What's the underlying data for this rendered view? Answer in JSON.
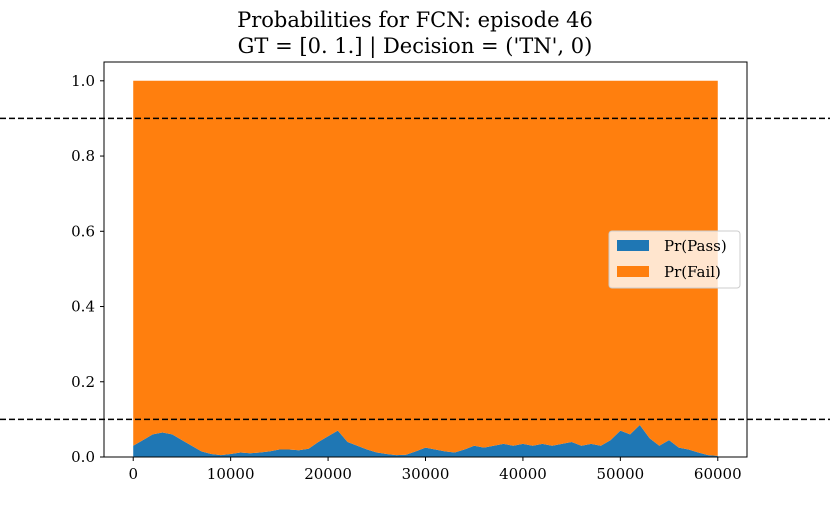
{
  "title_line1": "Probabilities for FCN: episode 46",
  "title_line2": "GT = [0. 1.] | Decision = ('TN', 0)",
  "chart_data": {
    "type": "area",
    "stacked": true,
    "title": "Probabilities for FCN: episode 46\nGT = [0. 1.] | Decision = ('TN', 0)",
    "xlabel": "",
    "ylabel": "",
    "xlim": [
      -3000,
      63000
    ],
    "ylim": [
      0,
      1.05
    ],
    "xticks": [
      0,
      10000,
      20000,
      30000,
      40000,
      50000,
      60000
    ],
    "yticks": [
      0.0,
      0.2,
      0.4,
      0.6,
      0.8,
      1.0
    ],
    "x": [
      0,
      1000,
      2000,
      3000,
      4000,
      5000,
      6000,
      7000,
      8000,
      9000,
      10000,
      11000,
      12000,
      13000,
      14000,
      15000,
      16000,
      17000,
      18000,
      19000,
      20000,
      21000,
      22000,
      23000,
      24000,
      25000,
      26000,
      27000,
      28000,
      29000,
      30000,
      31000,
      32000,
      33000,
      34000,
      35000,
      36000,
      37000,
      38000,
      39000,
      40000,
      41000,
      42000,
      43000,
      44000,
      45000,
      46000,
      47000,
      48000,
      49000,
      50000,
      51000,
      52000,
      53000,
      54000,
      55000,
      56000,
      57000,
      58000,
      59000,
      60000
    ],
    "series": [
      {
        "name": "Pr(Pass)",
        "color": "#1f77b4",
        "values": [
          0.03,
          0.045,
          0.06,
          0.065,
          0.06,
          0.045,
          0.03,
          0.015,
          0.008,
          0.005,
          0.008,
          0.012,
          0.01,
          0.012,
          0.015,
          0.02,
          0.02,
          0.018,
          0.022,
          0.04,
          0.055,
          0.07,
          0.04,
          0.03,
          0.02,
          0.012,
          0.008,
          0.005,
          0.006,
          0.015,
          0.025,
          0.02,
          0.015,
          0.012,
          0.02,
          0.03,
          0.025,
          0.03,
          0.035,
          0.03,
          0.035,
          0.03,
          0.035,
          0.03,
          0.035,
          0.04,
          0.03,
          0.035,
          0.03,
          0.045,
          0.07,
          0.06,
          0.085,
          0.05,
          0.03,
          0.045,
          0.025,
          0.02,
          0.012,
          0.005,
          0.003
        ]
      },
      {
        "name": "Pr(Fail)",
        "color": "#ff7f0e",
        "values": [
          0.97,
          0.955,
          0.94,
          0.935,
          0.94,
          0.955,
          0.97,
          0.985,
          0.992,
          0.995,
          0.992,
          0.988,
          0.99,
          0.988,
          0.985,
          0.98,
          0.98,
          0.982,
          0.978,
          0.96,
          0.945,
          0.93,
          0.96,
          0.97,
          0.98,
          0.988,
          0.992,
          0.995,
          0.994,
          0.985,
          0.975,
          0.98,
          0.985,
          0.988,
          0.98,
          0.97,
          0.975,
          0.97,
          0.965,
          0.97,
          0.965,
          0.97,
          0.965,
          0.97,
          0.965,
          0.96,
          0.97,
          0.965,
          0.97,
          0.955,
          0.93,
          0.94,
          0.915,
          0.95,
          0.97,
          0.955,
          0.975,
          0.98,
          0.988,
          0.995,
          0.997
        ]
      }
    ],
    "hlines": [
      {
        "y": 0.9,
        "style": "dashed",
        "color": "#000000"
      },
      {
        "y": 0.1,
        "style": "dashed",
        "color": "#000000"
      }
    ],
    "legend": {
      "position": "center-right",
      "entries": [
        "Pr(Pass)",
        "Pr(Fail)"
      ]
    },
    "grid": false
  }
}
